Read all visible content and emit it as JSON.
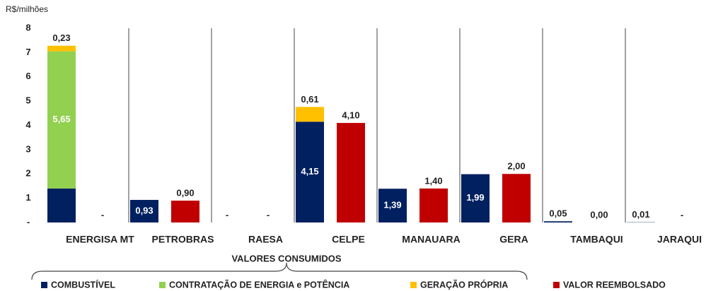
{
  "chart_data": {
    "type": "bar",
    "stacked": true,
    "y_axis_label": "R$/milhões",
    "x_axis_label": "VALORES CONSUMIDOS",
    "categories": [
      "ENERGISA MT",
      "PETROBRAS",
      "RAESA",
      "CELPE",
      "MANAUARA",
      "GERA",
      "TAMBAQUI",
      "JARAQUI"
    ],
    "ylim": [
      0,
      8
    ],
    "yticks": [
      {
        "value": 0,
        "label": "-"
      },
      1,
      2,
      3,
      4,
      5,
      6,
      7,
      8
    ],
    "grid": false,
    "legend": "bottom",
    "series": [
      {
        "name": "COMBUSTÍVEL",
        "color": "#002060",
        "stack": "consumido",
        "values": [
          1.4,
          0.93,
          0,
          4.15,
          1.39,
          1.99,
          0.05,
          0.01
        ],
        "value_labels": [
          null,
          "0,93",
          "-",
          "4,15",
          "1,39",
          "1,99",
          "0,05",
          "0,01"
        ]
      },
      {
        "name": "CONTRATAÇÃO DE ENERGIA e POTÊNCIA",
        "color": "#92d050",
        "stack": "consumido",
        "values": [
          5.65,
          null,
          null,
          null,
          null,
          null,
          null,
          null
        ],
        "value_labels": [
          "5,65",
          null,
          null,
          null,
          null,
          null,
          null,
          null
        ]
      },
      {
        "name": "GERAÇÃO PRÓPRIA",
        "color": "#ffc000",
        "stack": "consumido",
        "values": [
          0.23,
          null,
          null,
          0.61,
          null,
          null,
          null,
          null
        ],
        "value_labels": [
          "0,23",
          null,
          null,
          "0,61",
          null,
          null,
          null,
          null
        ]
      },
      {
        "name": "VALOR REEMBOLSADO",
        "color": "#c00000",
        "stack": "reembolsado",
        "values": [
          0,
          0.9,
          0,
          4.1,
          1.4,
          2.0,
          0.0,
          0
        ],
        "value_labels": [
          "-",
          "0,90",
          "-",
          "4,10",
          "1,40",
          "2,00",
          "0,00",
          "-"
        ]
      }
    ]
  }
}
